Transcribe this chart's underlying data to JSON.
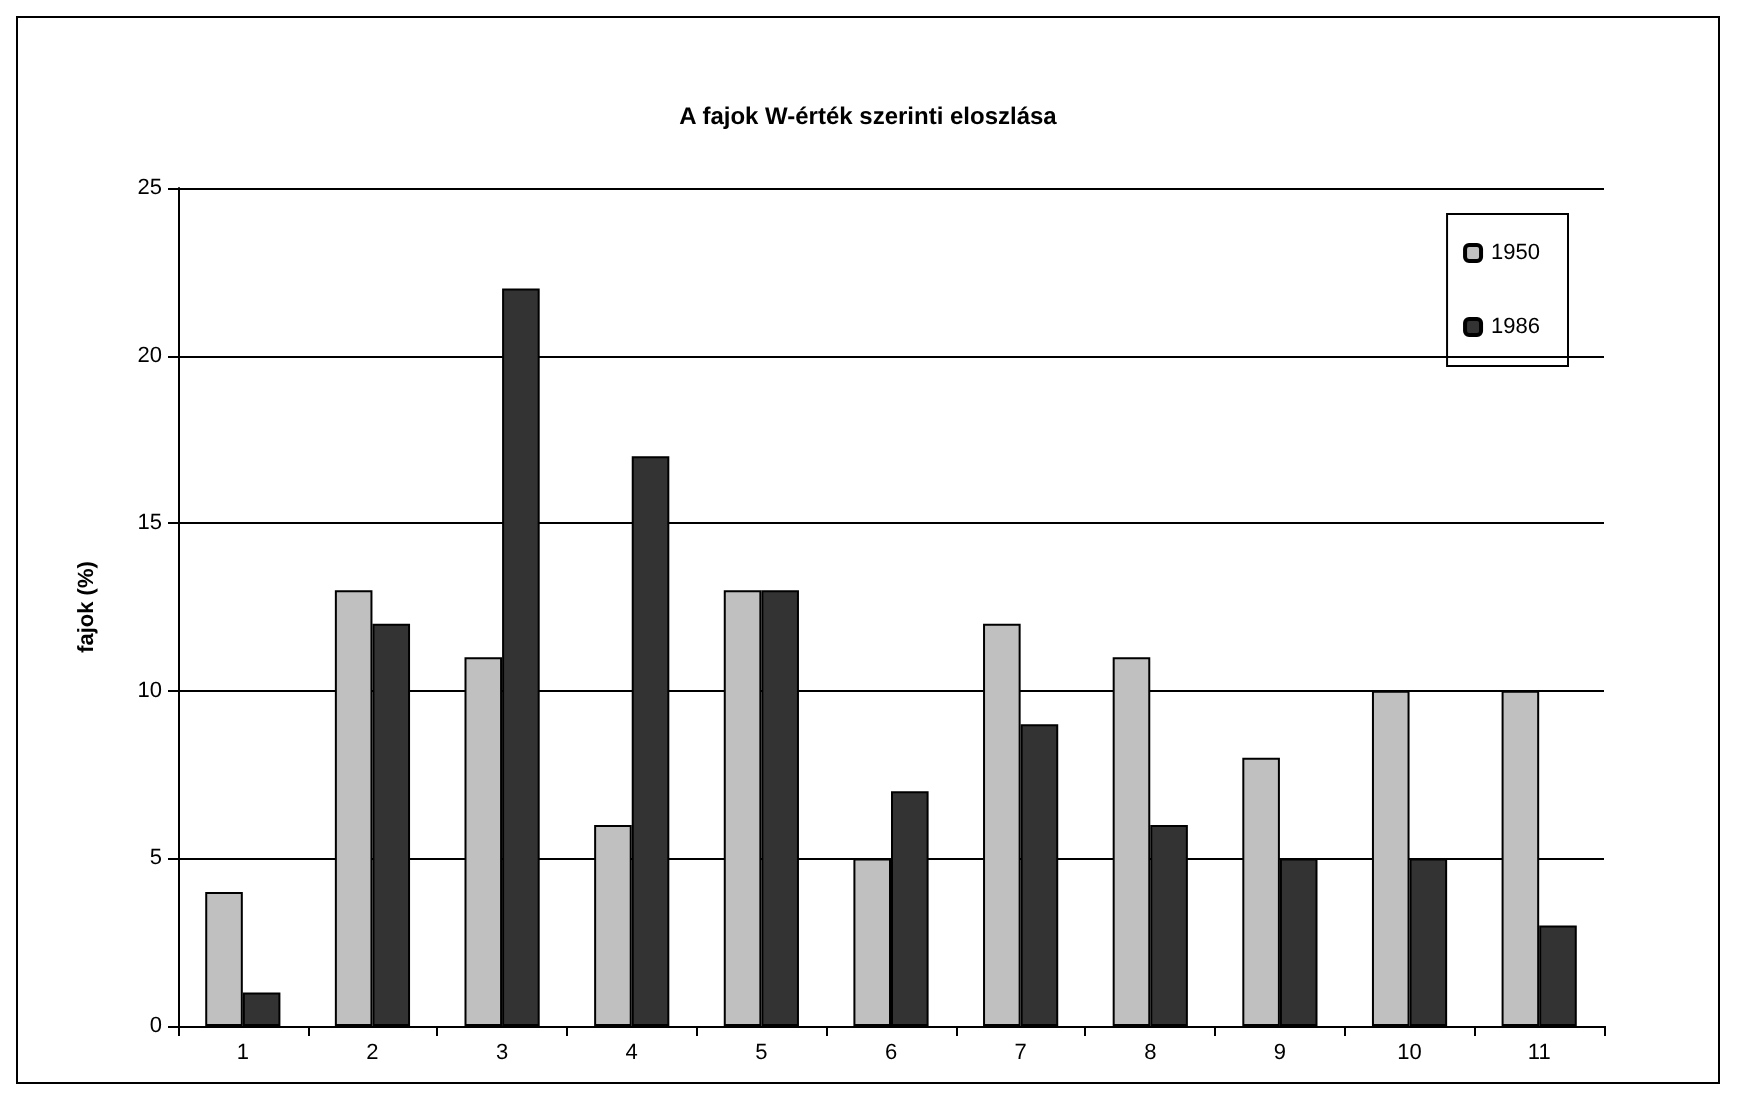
{
  "chart_data": {
    "type": "bar",
    "title": "A fajok W-érték szerinti eloszlása",
    "ylabel": "fajok (%)",
    "categories": [
      "1",
      "2",
      "3",
      "4",
      "5",
      "6",
      "7",
      "8",
      "9",
      "10",
      "11"
    ],
    "series": [
      {
        "name": "1950",
        "color": "#c0c0c0",
        "values": [
          4,
          13,
          11,
          6,
          13,
          5,
          12,
          11,
          8,
          10,
          10
        ]
      },
      {
        "name": "1986",
        "color": "#333333",
        "values": [
          1,
          12,
          22,
          17,
          13,
          7,
          9,
          6,
          5,
          5,
          3
        ]
      }
    ],
    "ylim": [
      0,
      25
    ],
    "yticks": [
      0,
      5,
      10,
      15,
      20,
      25
    ],
    "grid": "y",
    "legend": "top right"
  }
}
